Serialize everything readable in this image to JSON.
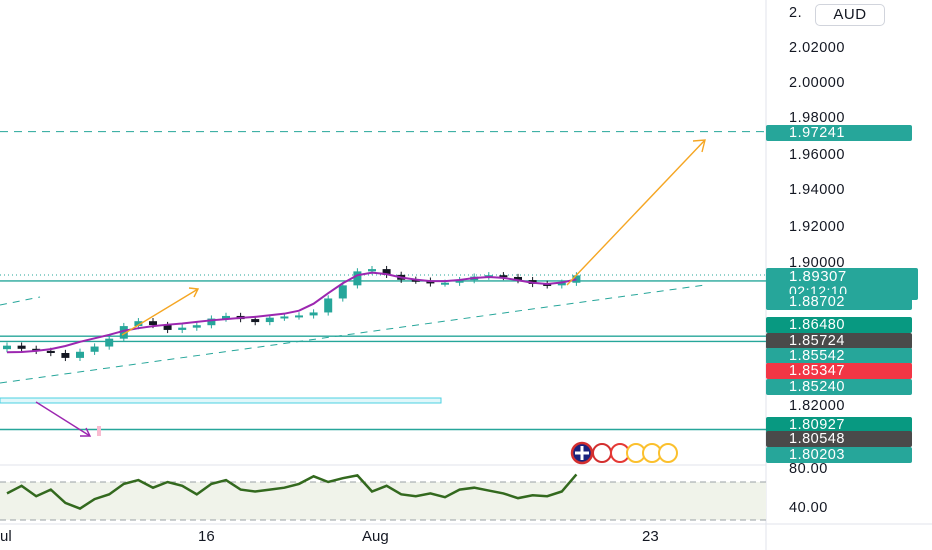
{
  "currency": "AUD",
  "colors": {
    "bullish": "#26a69a",
    "bearish": "#131722",
    "ma": "#9c27b0",
    "arrow": "#f5a623",
    "line_teal": "#26a69a",
    "rsi": "#33691e",
    "green_tag": "#089981",
    "red_tag": "#f23645",
    "gray_tag": "#4a4a4a"
  },
  "price_box": {
    "price": "1.89307",
    "countdown": "02:12:10"
  },
  "chart_data": {
    "type": "candlestick",
    "title": "",
    "y_axis": {
      "ticks": [
        "2.02000",
        "2.00000",
        "1.98000",
        "1.96000",
        "1.94000",
        "1.92000",
        "1.90000",
        "1.82000"
      ],
      "top_partial_label": "2."
    },
    "x_axis": {
      "ticks": [
        "ul",
        "16",
        "Aug",
        "23"
      ]
    },
    "price_tags": [
      {
        "value": "1.97241",
        "style": "teal"
      },
      {
        "value": "1.88702",
        "style": "teal"
      },
      {
        "value": "1.86480",
        "style": "green"
      },
      {
        "value": "1.85724",
        "style": "gray"
      },
      {
        "value": "1.85542",
        "style": "teal"
      },
      {
        "value": "1.85347",
        "style": "red"
      },
      {
        "value": "1.85240",
        "style": "teal"
      },
      {
        "value": "1.80927",
        "style": "green"
      },
      {
        "value": "1.80548",
        "style": "gray"
      },
      {
        "value": "1.80203",
        "style": "teal"
      }
    ],
    "horizontal_levels": [
      1.97241,
      1.88702,
      1.85542,
      1.8524,
      1.80203
    ],
    "series": [
      {
        "name": "",
        "kind": "close",
        "values": [
          1.85,
          1.8482,
          1.847,
          1.8458,
          1.843,
          1.8465,
          1.8495,
          1.854,
          1.8612,
          1.864,
          1.8618,
          1.859,
          1.8603,
          1.8617,
          1.8655,
          1.867,
          1.8652,
          1.8635,
          1.866,
          1.8667,
          1.8673,
          1.869,
          1.877,
          1.8845,
          1.8925,
          1.8938,
          1.8905,
          1.8877,
          1.8872,
          1.8856,
          1.886,
          1.8875,
          1.8895,
          1.8903,
          1.8893,
          1.8875,
          1.8853,
          1.8845,
          1.886,
          1.8902
        ]
      },
      {
        "name": "",
        "kind": "moving-average",
        "values": [
          1.8462,
          1.8464,
          1.847,
          1.848,
          1.8498,
          1.8522,
          1.8542,
          1.8562,
          1.8585,
          1.86,
          1.8612,
          1.862,
          1.8627,
          1.8636,
          1.8645,
          1.8652,
          1.8659,
          1.8665,
          1.8674,
          1.8683,
          1.87,
          1.874,
          1.88,
          1.8857,
          1.8903,
          1.8918,
          1.8909,
          1.889,
          1.8878,
          1.8869,
          1.8869,
          1.8876,
          1.8887,
          1.8893,
          1.8888,
          1.8874,
          1.886,
          1.8853,
          1.8861,
          1.8879
        ]
      },
      {
        "name": "",
        "kind": "rsi",
        "values": [
          58,
          66,
          55,
          62,
          48,
          42,
          52,
          57,
          68,
          72,
          64,
          70,
          66,
          57,
          68,
          72,
          62,
          60,
          62,
          64,
          68,
          76,
          70,
          74,
          77,
          60,
          66,
          57,
          55,
          58,
          54,
          62,
          64,
          61,
          58,
          53,
          56,
          55,
          60,
          78
        ]
      }
    ],
    "rsi_axis": {
      "labels": [
        "80.00",
        "40.00"
      ]
    },
    "annotations": [
      "projection-arrow",
      "projection-arrow",
      "downward-arrow",
      "trendline",
      "trendline"
    ]
  }
}
